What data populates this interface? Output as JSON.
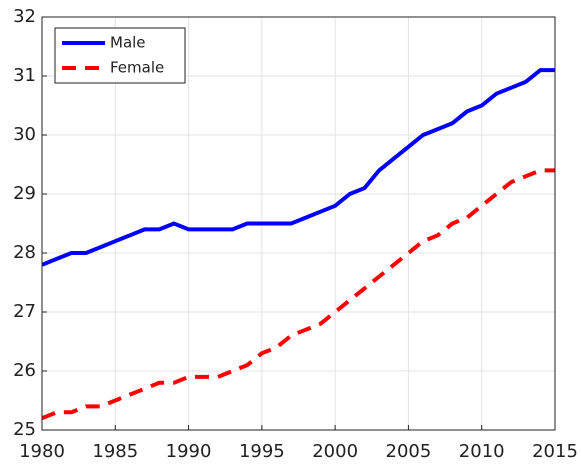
{
  "chart_data": {
    "type": "line",
    "x": [
      1980,
      1981,
      1982,
      1983,
      1984,
      1985,
      1986,
      1987,
      1988,
      1989,
      1990,
      1991,
      1992,
      1993,
      1994,
      1995,
      1996,
      1997,
      1998,
      1999,
      2000,
      2001,
      2002,
      2003,
      2004,
      2005,
      2006,
      2007,
      2008,
      2009,
      2010,
      2011,
      2012,
      2013,
      2014,
      2015
    ],
    "series": [
      {
        "name": "Male",
        "color": "#0000ff",
        "dash": false,
        "values": [
          27.8,
          27.9,
          28.0,
          28.0,
          28.1,
          28.2,
          28.3,
          28.4,
          28.4,
          28.5,
          28.4,
          28.4,
          28.4,
          28.4,
          28.5,
          28.5,
          28.5,
          28.5,
          28.6,
          28.7,
          28.8,
          29.0,
          29.1,
          29.4,
          29.6,
          29.8,
          30.0,
          30.1,
          30.2,
          30.4,
          30.5,
          30.7,
          30.8,
          30.9,
          31.1,
          31.1
        ]
      },
      {
        "name": "Female",
        "color": "#ff0000",
        "dash": true,
        "values": [
          25.2,
          25.3,
          25.3,
          25.4,
          25.4,
          25.5,
          25.6,
          25.7,
          25.8,
          25.8,
          25.9,
          25.9,
          25.9,
          26.0,
          26.1,
          26.3,
          26.4,
          26.6,
          26.7,
          26.8,
          27.0,
          27.2,
          27.4,
          27.6,
          27.8,
          28.0,
          28.2,
          28.3,
          28.5,
          28.6,
          28.8,
          29.0,
          29.2,
          29.3,
          29.4,
          29.4
        ]
      }
    ],
    "xlim": [
      1980,
      2015
    ],
    "xticks": [
      1980,
      1985,
      1990,
      1995,
      2000,
      2005,
      2010,
      2015
    ],
    "ylim": [
      25,
      32
    ],
    "yticks": [
      25,
      26,
      27,
      28,
      29,
      30,
      31,
      32
    ],
    "grid": true,
    "legend": "upper-left"
  }
}
